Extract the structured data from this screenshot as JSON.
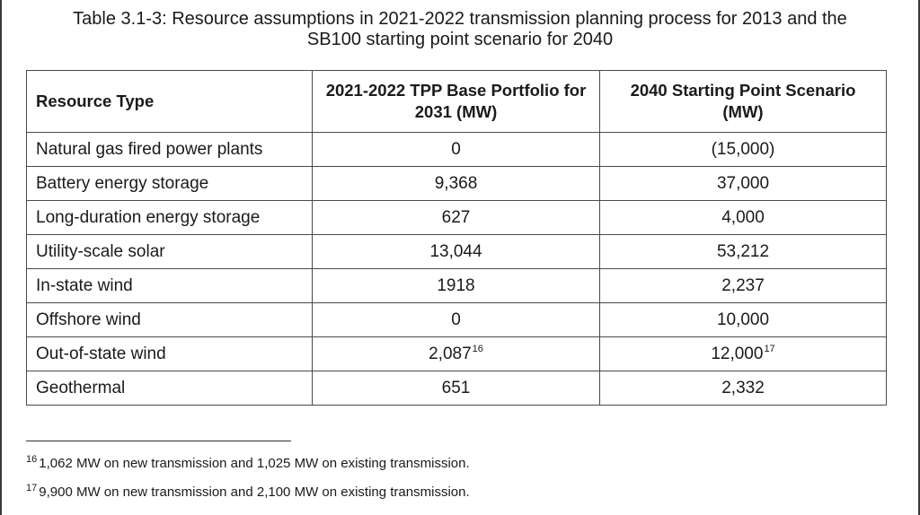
{
  "caption": {
    "line1": "Table 3.1-3: Resource assumptions in 2021-2022 transmission planning process for 2013 and the",
    "line2": "SB100 starting point scenario for 2040"
  },
  "table": {
    "headers": [
      "Resource Type",
      "2021-2022 TPP Base Portfolio for 2031 (MW)",
      "2040 Starting Point Scenario (MW)"
    ],
    "rows": [
      {
        "type": "Natural gas fired power plants",
        "base_2031": "0",
        "base_2031_fn": "",
        "scenario_2040": "(15,000)",
        "scenario_2040_fn": ""
      },
      {
        "type": "Battery energy storage",
        "base_2031": "9,368",
        "base_2031_fn": "",
        "scenario_2040": "37,000",
        "scenario_2040_fn": ""
      },
      {
        "type": "Long-duration energy storage",
        "base_2031": "627",
        "base_2031_fn": "",
        "scenario_2040": "4,000",
        "scenario_2040_fn": ""
      },
      {
        "type": "Utility-scale solar",
        "base_2031": "13,044",
        "base_2031_fn": "",
        "scenario_2040": "53,212",
        "scenario_2040_fn": ""
      },
      {
        "type": "In-state wind",
        "base_2031": "1918",
        "base_2031_fn": "",
        "scenario_2040": "2,237",
        "scenario_2040_fn": ""
      },
      {
        "type": "Offshore wind",
        "base_2031": "0",
        "base_2031_fn": "",
        "scenario_2040": "10,000",
        "scenario_2040_fn": ""
      },
      {
        "type": "Out-of-state wind",
        "base_2031": "2,087",
        "base_2031_fn": "16",
        "scenario_2040": "12,000",
        "scenario_2040_fn": "17"
      },
      {
        "type": "Geothermal",
        "base_2031": "651",
        "base_2031_fn": "",
        "scenario_2040": "2,332",
        "scenario_2040_fn": ""
      }
    ]
  },
  "footnotes": [
    {
      "marker": "16",
      "text": "1,062 MW on new transmission and 1,025 MW on existing transmission."
    },
    {
      "marker": "17",
      "text": "9,900 MW on new transmission and 2,100 MW on existing transmission."
    }
  ]
}
